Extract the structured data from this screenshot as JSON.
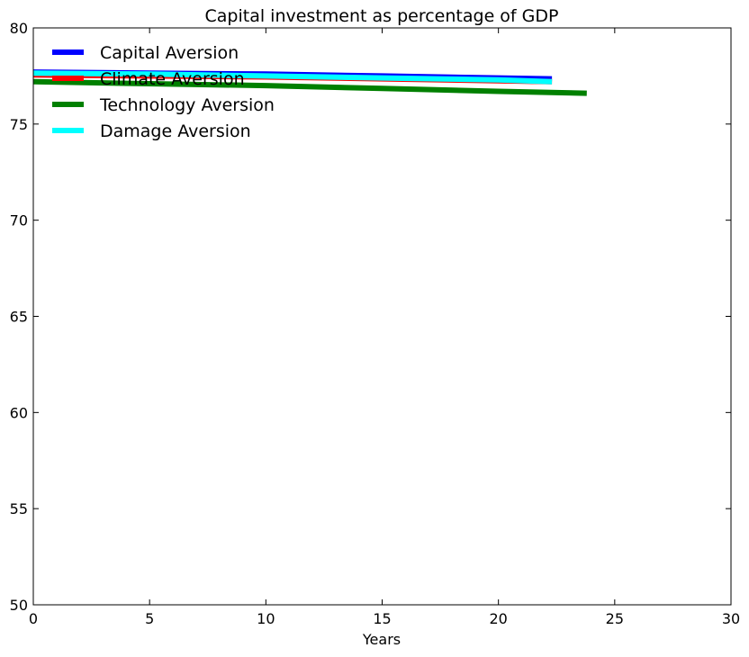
{
  "chart_data": {
    "type": "line",
    "title": "Capital investment as percentage of GDP",
    "xlabel": "Years",
    "ylabel": "",
    "xlim": [
      0,
      30
    ],
    "ylim": [
      50,
      80
    ],
    "xticks": [
      "0",
      "5",
      "10",
      "15",
      "20",
      "25",
      "30"
    ],
    "yticks": [
      "50",
      "55",
      "60",
      "65",
      "70",
      "75",
      "80"
    ],
    "grid": false,
    "legend_position": "top-left",
    "series": [
      {
        "name": "Capital Aversion",
        "color": "#0000ff",
        "x": [
          0,
          5,
          10,
          15,
          20,
          22.3
        ],
        "y": [
          77.7,
          77.65,
          77.6,
          77.5,
          77.4,
          77.35
        ]
      },
      {
        "name": "Climate Aversion",
        "color": "#ff0000",
        "x": [
          0,
          5,
          10,
          15,
          20,
          22.3
        ],
        "y": [
          77.55,
          77.5,
          77.45,
          77.35,
          77.25,
          77.2
        ]
      },
      {
        "name": "Technology Aversion",
        "color": "#008000",
        "x": [
          0,
          5,
          10,
          15,
          20,
          23.8
        ],
        "y": [
          77.2,
          77.1,
          77.0,
          76.85,
          76.7,
          76.6
        ]
      },
      {
        "name": "Damage Aversion",
        "color": "#00ffff",
        "x": [
          0,
          5,
          10,
          15,
          20,
          22.3
        ],
        "y": [
          77.65,
          77.6,
          77.5,
          77.4,
          77.3,
          77.2
        ]
      }
    ]
  }
}
